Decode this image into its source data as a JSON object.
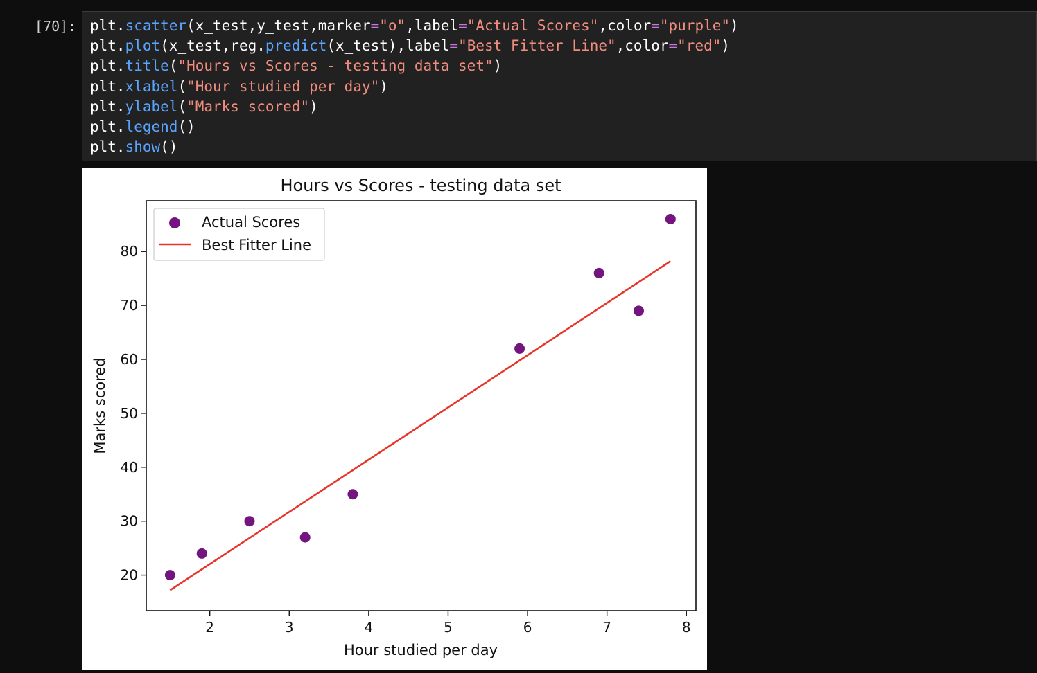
{
  "cell": {
    "prompt": "[70]:",
    "code_lines": [
      [
        {
          "t": "plt.",
          "c": "plain"
        },
        {
          "t": "scatter",
          "c": "fn"
        },
        {
          "t": "(x_test,y_test,marker",
          "c": "plain"
        },
        {
          "t": "=",
          "c": "op"
        },
        {
          "t": "\"o\"",
          "c": "str"
        },
        {
          "t": ",label",
          "c": "plain"
        },
        {
          "t": "=",
          "c": "op"
        },
        {
          "t": "\"Actual Scores\"",
          "c": "str"
        },
        {
          "t": ",color",
          "c": "plain"
        },
        {
          "t": "=",
          "c": "op"
        },
        {
          "t": "\"purple\"",
          "c": "str"
        },
        {
          "t": ")",
          "c": "plain"
        }
      ],
      [
        {
          "t": "plt.",
          "c": "plain"
        },
        {
          "t": "plot",
          "c": "fn"
        },
        {
          "t": "(x_test,reg.",
          "c": "plain"
        },
        {
          "t": "predict",
          "c": "fn"
        },
        {
          "t": "(x_test),label",
          "c": "plain"
        },
        {
          "t": "=",
          "c": "op"
        },
        {
          "t": "\"Best Fitter Line\"",
          "c": "str"
        },
        {
          "t": ",color",
          "c": "plain"
        },
        {
          "t": "=",
          "c": "op"
        },
        {
          "t": "\"red\"",
          "c": "str"
        },
        {
          "t": ")",
          "c": "plain"
        }
      ],
      [
        {
          "t": "plt.",
          "c": "plain"
        },
        {
          "t": "title",
          "c": "fn"
        },
        {
          "t": "(",
          "c": "plain"
        },
        {
          "t": "\"Hours vs Scores - testing data set\"",
          "c": "str"
        },
        {
          "t": ")",
          "c": "plain"
        }
      ],
      [
        {
          "t": "plt.",
          "c": "plain"
        },
        {
          "t": "xlabel",
          "c": "fn"
        },
        {
          "t": "(",
          "c": "plain"
        },
        {
          "t": "\"Hour studied per day\"",
          "c": "str"
        },
        {
          "t": ")",
          "c": "plain"
        }
      ],
      [
        {
          "t": "plt.",
          "c": "plain"
        },
        {
          "t": "ylabel",
          "c": "fn"
        },
        {
          "t": "(",
          "c": "plain"
        },
        {
          "t": "\"Marks scored\"",
          "c": "str"
        },
        {
          "t": ")",
          "c": "plain"
        }
      ],
      [
        {
          "t": "plt.",
          "c": "plain"
        },
        {
          "t": "legend",
          "c": "fn"
        },
        {
          "t": "()",
          "c": "plain"
        }
      ],
      [
        {
          "t": "plt.",
          "c": "plain"
        },
        {
          "t": "show",
          "c": "fn"
        },
        {
          "t": "()",
          "c": "plain"
        }
      ]
    ]
  },
  "colors": {
    "scatter": "#74147e",
    "line": "#e8352a",
    "code_fn": "#5aa3ff",
    "code_str": "#f08d7f",
    "code_op": "#c678dd"
  },
  "chart_data": {
    "type": "scatter",
    "title": "Hours vs Scores - testing data set",
    "xlabel": "Hour studied per day",
    "ylabel": "Marks scored",
    "xlim": [
      1.2,
      8.12
    ],
    "ylim": [
      13.4,
      89.4
    ],
    "xticks": [
      2,
      3,
      4,
      5,
      6,
      7,
      8
    ],
    "yticks": [
      20,
      30,
      40,
      50,
      60,
      70,
      80
    ],
    "grid": false,
    "legend_position": "upper left",
    "series": [
      {
        "name": "Actual Scores",
        "kind": "scatter",
        "color": "purple",
        "marker": "o",
        "x": [
          1.5,
          1.9,
          2.5,
          3.2,
          3.8,
          5.9,
          6.9,
          7.4,
          7.8
        ],
        "y": [
          20,
          24,
          30,
          27,
          35,
          62,
          76,
          69,
          86
        ]
      },
      {
        "name": "Best Fitter Line",
        "kind": "line",
        "color": "red",
        "x": [
          1.5,
          7.8
        ],
        "y": [
          17.2,
          78.2
        ]
      }
    ]
  }
}
